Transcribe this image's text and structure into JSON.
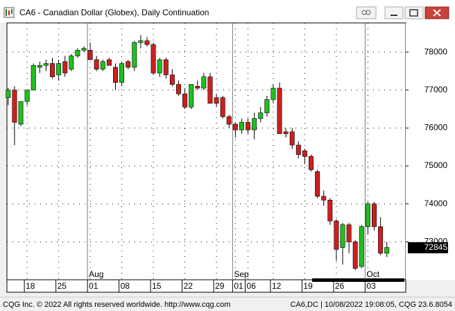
{
  "window": {
    "title": "CA6 - Canadian Dollar (Globex), Daily Continuation"
  },
  "chart_data": {
    "type": "candlestick",
    "ohlc": [
      [
        76800,
        77050,
        76600,
        77000
      ],
      [
        77000,
        77100,
        75550,
        76150
      ],
      [
        76100,
        76700,
        76050,
        76700
      ],
      [
        76700,
        77000,
        76600,
        77000
      ],
      [
        77000,
        77700,
        77000,
        77650
      ],
      [
        77600,
        77750,
        77450,
        77650
      ],
      [
        77650,
        77800,
        77500,
        77700
      ],
      [
        77700,
        77850,
        77300,
        77350
      ],
      [
        77400,
        77800,
        77250,
        77700
      ],
      [
        77750,
        77900,
        77350,
        77450
      ],
      [
        77550,
        77950,
        77500,
        77900
      ],
      [
        77900,
        78100,
        77850,
        78050
      ],
      [
        78050,
        78150,
        78000,
        78100
      ],
      [
        78050,
        78250,
        77800,
        77800
      ],
      [
        77800,
        77900,
        77500,
        77550
      ],
      [
        77550,
        77800,
        77500,
        77750
      ],
      [
        77800,
        77850,
        77650,
        77650
      ],
      [
        77600,
        77700,
        77000,
        77200
      ],
      [
        77200,
        77750,
        77100,
        77700
      ],
      [
        77750,
        77800,
        77550,
        77600
      ],
      [
        77600,
        78300,
        77500,
        78250
      ],
      [
        78250,
        78450,
        78100,
        78300
      ],
      [
        78300,
        78400,
        78150,
        78200
      ],
      [
        78200,
        78250,
        77400,
        77450
      ],
      [
        77450,
        77850,
        77350,
        77800
      ],
      [
        77800,
        77850,
        77300,
        77400
      ],
      [
        77400,
        77550,
        77100,
        77150
      ],
      [
        77150,
        77250,
        76850,
        76900
      ],
      [
        76900,
        77050,
        76500,
        76550
      ],
      [
        76550,
        77150,
        76500,
        77150
      ],
      [
        77100,
        77250,
        77000,
        77050
      ],
      [
        77050,
        77450,
        77000,
        77350
      ],
      [
        77350,
        77450,
        76650,
        76650
      ],
      [
        76800,
        76900,
        76550,
        76650
      ],
      [
        76800,
        76850,
        76250,
        76300
      ],
      [
        76300,
        76350,
        76000,
        76100
      ],
      [
        76100,
        76150,
        75750,
        75950
      ],
      [
        75950,
        76250,
        75850,
        76150
      ],
      [
        76150,
        76250,
        75850,
        75950
      ],
      [
        75950,
        76400,
        75700,
        76250
      ],
      [
        76250,
        76550,
        76150,
        76400
      ],
      [
        76400,
        76850,
        76300,
        76750
      ],
      [
        76750,
        77150,
        76650,
        77050
      ],
      [
        77050,
        77200,
        75850,
        75850
      ],
      [
        75900,
        76000,
        75750,
        75850
      ],
      [
        75900,
        76000,
        75450,
        75550
      ],
      [
        75550,
        75650,
        75200,
        75300
      ],
      [
        75400,
        75450,
        75050,
        75250
      ],
      [
        75250,
        75300,
        74850,
        74900
      ],
      [
        74850,
        74900,
        74150,
        74200
      ],
      [
        74200,
        74350,
        73950,
        74100
      ],
      [
        74100,
        74150,
        73450,
        73550
      ],
      [
        73550,
        73600,
        72500,
        72800
      ],
      [
        72850,
        73500,
        72400,
        73450
      ],
      [
        73450,
        73500,
        72700,
        73000
      ],
      [
        73000,
        73050,
        72250,
        72300
      ],
      [
        72350,
        73450,
        72300,
        73400
      ],
      [
        73400,
        74050,
        73200,
        74000
      ],
      [
        74000,
        74050,
        73300,
        73400
      ],
      [
        73400,
        73650,
        72650,
        72700
      ],
      [
        72700,
        73000,
        72600,
        72850
      ]
    ],
    "colors": {
      "up": "#1fbf1f",
      "down": "#cc1f1f"
    },
    "xlim": [
      -0.2,
      63
    ],
    "ylim": [
      72000,
      78770
    ],
    "yticks": [
      73000,
      74000,
      75000,
      76000,
      77000,
      78000
    ],
    "xticks": [
      {
        "value": 3,
        "label": "18"
      },
      {
        "value": 8,
        "label": "25"
      },
      {
        "value": 13,
        "label": "01"
      },
      {
        "value": 18,
        "label": "08"
      },
      {
        "value": 23,
        "label": "15"
      },
      {
        "value": 28,
        "label": "22"
      },
      {
        "value": 33,
        "label": "29"
      },
      {
        "value": 36,
        "label": "01"
      },
      {
        "value": 38,
        "label": "06"
      },
      {
        "value": 42,
        "label": "12"
      },
      {
        "value": 47,
        "label": "19"
      },
      {
        "value": 52,
        "label": "26"
      },
      {
        "value": 57,
        "label": "03"
      }
    ],
    "month_labels": [
      {
        "value": 13,
        "label": "Aug"
      },
      {
        "value": 36,
        "label": "Sep"
      },
      {
        "value": 57,
        "label": "Oct"
      }
    ],
    "last_price": 72845,
    "grid": true
  },
  "status_bar": {
    "left": "CQG Inc. © 2022 All rights reserved worldwide. http://www.cqg.com",
    "right": "CA6,DC | 10/08/2022 19:08:05, CQG 23.6.8054"
  }
}
